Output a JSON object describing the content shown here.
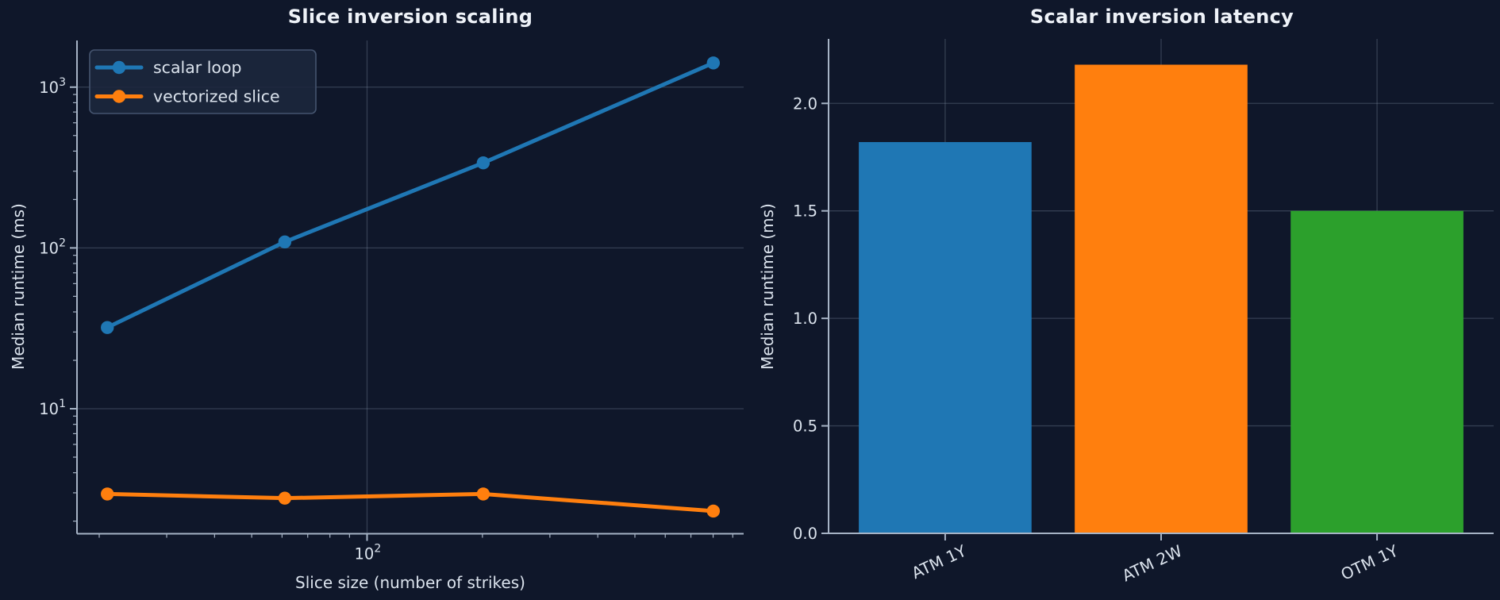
{
  "figure": {
    "background": "#0f172a",
    "text_color": "#dbe3ed",
    "title_color": "#eef2f8",
    "axis_color": "#a6b3c5",
    "grid_color": "rgba(150,166,188,0.28)"
  },
  "chart_data": [
    {
      "type": "line",
      "title": "Slice inversion scaling",
      "xlabel": "Slice size (number of strikes)",
      "ylabel": "Median runtime (ms)",
      "xscale": "log",
      "yscale": "log",
      "x": [
        21,
        61,
        201,
        801
      ],
      "series": [
        {
          "name": "scalar loop",
          "color": "#1f77b4",
          "values": [
            32,
            109,
            338,
            1414
          ]
        },
        {
          "name": "vectorized slice",
          "color": "#ff7f0e",
          "values": [
            2.95,
            2.78,
            2.95,
            2.31
          ]
        }
      ],
      "xlim": [
        17.5,
        961
      ],
      "ylim": [
        1.67,
        1950
      ],
      "x_major_ticks": [
        100
      ],
      "y_major_ticks": [
        10,
        100,
        1000
      ],
      "grid": true,
      "legend_position": "upper left"
    },
    {
      "type": "bar",
      "title": "Scalar inversion latency",
      "xlabel": "",
      "ylabel": "Median runtime (ms)",
      "categories": [
        "ATM 1Y",
        "ATM 2W",
        "OTM 1Y"
      ],
      "values": [
        1.82,
        2.18,
        1.5
      ],
      "bar_colors": [
        "#1f77b4",
        "#ff7f0e",
        "#2ca02c"
      ],
      "ylim": [
        0,
        2.3
      ],
      "y_ticks": [
        0,
        0.5,
        1,
        1.5,
        2
      ],
      "y_tick_labels": [
        "0.0",
        "0.5",
        "1.0",
        "1.5",
        "2.0"
      ],
      "xtick_rotation_deg": 25,
      "grid": true,
      "legend_position": "none"
    }
  ]
}
